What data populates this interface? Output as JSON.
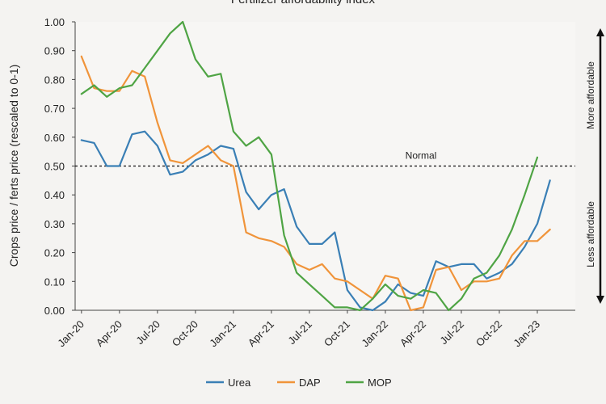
{
  "chart_data": {
    "type": "line",
    "title": "Fertilizer affordability index",
    "xlabel": "",
    "ylabel": "Crops price / ferts price (rescaled to 0-1)",
    "ylim": [
      0,
      1
    ],
    "yticks": [
      "0.00",
      "0.10",
      "0.20",
      "0.30",
      "0.40",
      "0.50",
      "0.60",
      "0.70",
      "0.80",
      "0.90",
      "1.00"
    ],
    "x_tick_labels": [
      "Jan-20",
      "Apr-20",
      "Jul-20",
      "Oct-20",
      "Jan-21",
      "Apr-21",
      "Jul-21",
      "Oct-21",
      "Jan-22",
      "Apr-22",
      "Jul-22",
      "Oct-22",
      "Jan-23"
    ],
    "x_count": 40,
    "reference_line": {
      "value": 0.5,
      "label": "Normal"
    },
    "annotations": {
      "up": "More affordable",
      "down": "Less affordable"
    },
    "series": [
      {
        "name": "Urea",
        "color": "#3a7fb5",
        "values": [
          0.59,
          0.58,
          0.5,
          0.5,
          0.61,
          0.62,
          0.57,
          0.47,
          0.48,
          0.52,
          0.54,
          0.57,
          0.56,
          0.41,
          0.35,
          0.4,
          0.42,
          0.29,
          0.23,
          0.23,
          0.27,
          0.07,
          0.01,
          0.0,
          0.03,
          0.09,
          0.06,
          0.05,
          0.17,
          0.15,
          0.16,
          0.16,
          0.11,
          0.13,
          0.16,
          0.22,
          0.3,
          0.45
        ]
      },
      {
        "name": "DAP",
        "color": "#f0943a",
        "values": [
          0.88,
          0.77,
          0.76,
          0.76,
          0.83,
          0.81,
          0.65,
          0.52,
          0.51,
          0.54,
          0.57,
          0.52,
          0.5,
          0.27,
          0.25,
          0.24,
          0.22,
          0.16,
          0.14,
          0.16,
          0.11,
          0.1,
          0.07,
          0.04,
          0.12,
          0.11,
          0.0,
          0.01,
          0.14,
          0.15,
          0.07,
          0.1,
          0.1,
          0.11,
          0.19,
          0.24,
          0.24,
          0.28
        ]
      },
      {
        "name": "MOP",
        "color": "#4fa444",
        "values": [
          0.75,
          0.78,
          0.74,
          0.77,
          0.78,
          0.84,
          0.9,
          0.96,
          1.0,
          0.87,
          0.81,
          0.82,
          0.62,
          0.57,
          0.6,
          0.54,
          0.26,
          0.13,
          0.09,
          0.05,
          0.01,
          0.01,
          0.0,
          0.04,
          0.09,
          0.05,
          0.04,
          0.07,
          0.06,
          0.0,
          0.04,
          0.11,
          0.13,
          0.19,
          0.28,
          0.4,
          0.53
        ]
      }
    ]
  }
}
